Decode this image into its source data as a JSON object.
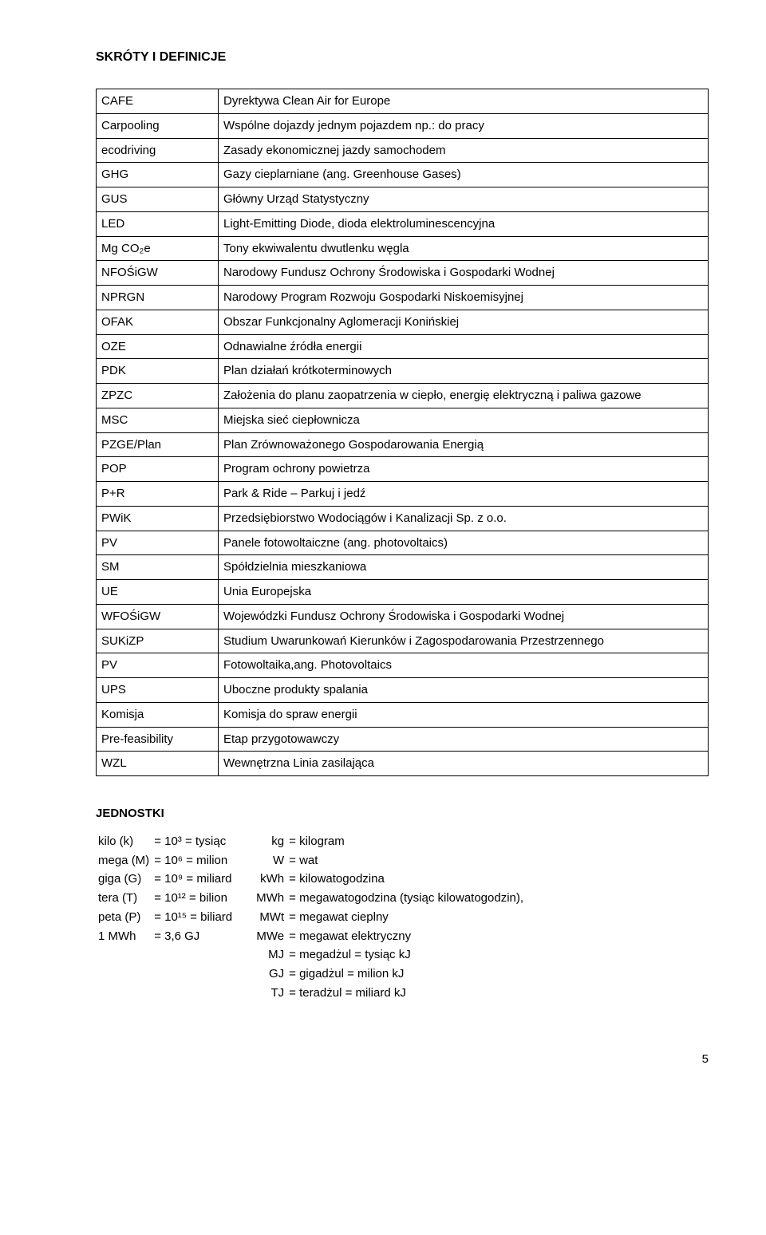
{
  "title": "SKRÓTY I DEFINICJE",
  "defs": [
    {
      "a": "CAFE",
      "d": "Dyrektywa Clean Air for Europe"
    },
    {
      "a": "Carpooling",
      "d": "Wspólne dojazdy jednym pojazdem np.: do pracy"
    },
    {
      "a": "ecodriving",
      "d": "Zasady ekonomicznej jazdy samochodem"
    },
    {
      "a": "GHG",
      "d": "Gazy cieplarniane (ang. Greenhouse Gases)"
    },
    {
      "a": "GUS",
      "d": "Główny Urząd Statystyczny"
    },
    {
      "a": "LED",
      "d": "Light-Emitting Diode, dioda elektroluminescencyjna"
    },
    {
      "a": "Mg CO₂e",
      "d": "Tony ekwiwalentu dwutlenku węgla"
    },
    {
      "a": "NFOŚiGW",
      "d": "Narodowy Fundusz Ochrony Środowiska i Gospodarki Wodnej"
    },
    {
      "a": "NPRGN",
      "d": "Narodowy Program Rozwoju Gospodarki Niskoemisyjnej"
    },
    {
      "a": "OFAK",
      "d": "Obszar Funkcjonalny Aglomeracji Konińskiej"
    },
    {
      "a": "OZE",
      "d": "Odnawialne źródła energii"
    },
    {
      "a": "PDK",
      "d": "Plan działań krótkoterminowych"
    },
    {
      "a": "ZPZC",
      "d": "Założenia do planu zaopatrzenia w ciepło, energię elektryczną i paliwa gazowe"
    },
    {
      "a": "MSC",
      "d": "Miejska sieć ciepłownicza"
    },
    {
      "a": "PZGE/Plan",
      "d": "Plan Zrównoważonego Gospodarowania Energią"
    },
    {
      "a": "POP",
      "d": "Program ochrony powietrza"
    },
    {
      "a": "P+R",
      "d": "Park & Ride – Parkuj i jedź"
    },
    {
      "a": "PWiK",
      "d": "Przedsiębiorstwo Wodociągów i Kanalizacji Sp. z o.o."
    },
    {
      "a": "PV",
      "d": "Panele fotowoltaiczne (ang. photovoltaics)"
    },
    {
      "a": "SM",
      "d": "Spółdzielnia mieszkaniowa"
    },
    {
      "a": "UE",
      "d": "Unia Europejska"
    },
    {
      "a": "WFOŚiGW",
      "d": "Wojewódzki Fundusz Ochrony Środowiska i Gospodarki Wodnej"
    },
    {
      "a": "SUKiZP",
      "d": "Studium Uwarunkowań Kierunków i Zagospodarowania Przestrzennego"
    },
    {
      "a": "PV",
      "d": "Fotowoltaika,ang. Photovoltaics"
    },
    {
      "a": "UPS",
      "d": "Uboczne produkty spalania"
    },
    {
      "a": "Komisja",
      "d": "Komisja do spraw energii"
    },
    {
      "a": "Pre-feasibility",
      "d": "Etap przygotowawczy"
    },
    {
      "a": "WZL",
      "d": "Wewnętrzna Linia zasilająca"
    }
  ],
  "units_title": "JEDNOSTKI",
  "units_left": [
    {
      "a": "kilo (k)",
      "b": "= 10³ = tysiąc"
    },
    {
      "a": "mega (M)",
      "b": "= 10⁶ = milion"
    },
    {
      "a": "giga (G)",
      "b": "= 10⁹ = miliard"
    },
    {
      "a": "tera (T)",
      "b": "= 10¹² = bilion"
    },
    {
      "a": "peta (P)",
      "b": "= 10¹⁵ = biliard"
    },
    {
      "a": "1 MWh",
      "b": "= 3,6 GJ"
    }
  ],
  "units_right": [
    {
      "a": "kg",
      "b": "= kilogram"
    },
    {
      "a": "W",
      "b": "= wat"
    },
    {
      "a": "kWh",
      "b": "= kilowatogodzina"
    },
    {
      "a": "MWh",
      "b": "= megawatogodzina (tysiąc kilowatogodzin),"
    },
    {
      "a": "MWt",
      "b": "= megawat cieplny"
    },
    {
      "a": "MWe",
      "b": "= megawat elektryczny"
    },
    {
      "a": "MJ",
      "b": "= megadżul = tysiąc kJ"
    },
    {
      "a": "GJ",
      "b": "= gigadżul = milion kJ"
    },
    {
      "a": "TJ",
      "b": "= teradżul = miliard kJ"
    }
  ],
  "page_number": "5"
}
